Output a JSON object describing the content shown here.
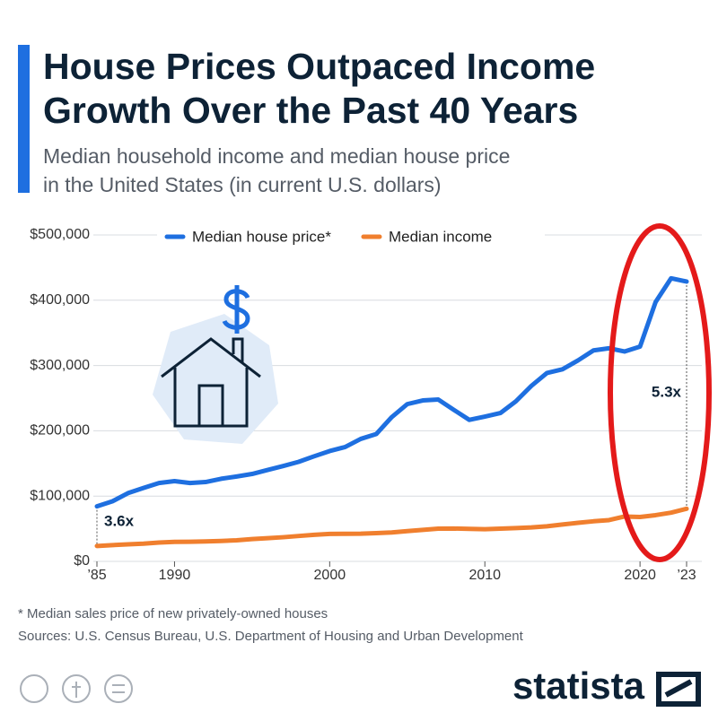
{
  "chart_data": {
    "type": "line",
    "title": [
      "House Prices Outpaced Income",
      "Growth Over the Past 40 Years"
    ],
    "subtitle": [
      "Median household income and median house price",
      "in the United States (in current U.S. dollars)"
    ],
    "x": [
      1985,
      1986,
      1987,
      1988,
      1989,
      1990,
      1991,
      1992,
      1993,
      1994,
      1995,
      1996,
      1997,
      1998,
      1999,
      2000,
      2001,
      2002,
      2003,
      2004,
      2005,
      2006,
      2007,
      2008,
      2009,
      2010,
      2011,
      2012,
      2013,
      2014,
      2015,
      2016,
      2017,
      2018,
      2019,
      2020,
      2021,
      2022,
      2023
    ],
    "series": [
      {
        "name": "Median house price*",
        "color": "#1e6fe0",
        "values": [
          84300,
          92000,
          104500,
          112500,
          120000,
          122900,
          120000,
          121500,
          126500,
          130000,
          133900,
          140000,
          146000,
          152500,
          161000,
          169000,
          175200,
          187600,
          195000,
          221000,
          240900,
          246500,
          247900,
          232100,
          216700,
          221800,
          227200,
          245200,
          268900,
          288500,
          294200,
          307800,
          323100,
          326400,
          321500,
          329000,
          397100,
          433600,
          428600
        ]
      },
      {
        "name": "Median income",
        "color": "#f07f2e",
        "values": [
          23600,
          24900,
          26100,
          27200,
          28900,
          29900,
          30100,
          30600,
          31200,
          32300,
          34100,
          35500,
          37000,
          38900,
          40700,
          41990,
          42200,
          42400,
          43300,
          44300,
          46300,
          48200,
          50200,
          50300,
          49800,
          49300,
          50100,
          51000,
          52000,
          53700,
          56500,
          59000,
          61400,
          63200,
          68700,
          68000,
          70800,
          74600,
          80600
        ]
      }
    ],
    "xlim": [
      1985,
      2023
    ],
    "xticks": [
      {
        "value": 1985,
        "label": "’85"
      },
      1990,
      2000,
      2010,
      2020,
      {
        "value": 2023,
        "label": "’23"
      }
    ],
    "ylim": [
      0,
      500000
    ],
    "yticks": [
      {
        "value": 0,
        "label": "$0"
      },
      {
        "value": 100000,
        "label": "$100,000"
      },
      {
        "value": 200000,
        "label": "$200,000"
      },
      {
        "value": 300000,
        "label": "$300,000"
      },
      {
        "value": 400000,
        "label": "$400,000"
      },
      {
        "value": 500000,
        "label": "$500,000"
      }
    ],
    "grid": true,
    "legend": "top",
    "annotations": [
      {
        "text": "3.6x"
      },
      {
        "text": "5.3x"
      }
    ],
    "footnote": "* Median sales price of new privately-owned houses",
    "source": "Sources: U.S. Census Bureau, U.S. Department of Housing and Urban Development",
    "logo": "statista"
  }
}
